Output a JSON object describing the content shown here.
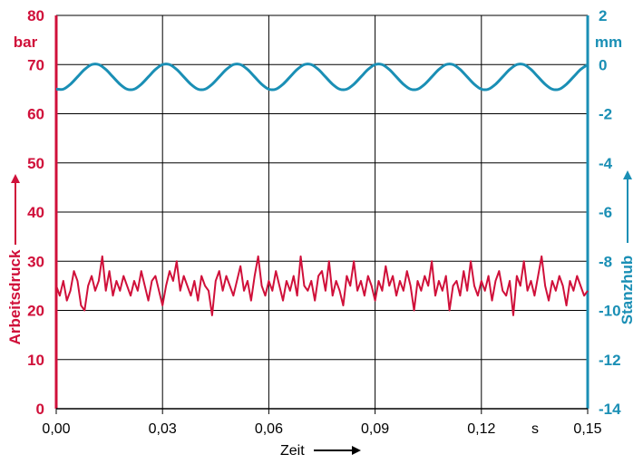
{
  "chart_data": {
    "type": "line",
    "title": "",
    "xlabel": "Zeit",
    "xunit": "s",
    "xlim": [
      0,
      0.15
    ],
    "x_ticks": [
      "0,00",
      "0,03",
      "0,06",
      "0,09",
      "0,12",
      "0,15"
    ],
    "x_tick_values": [
      0,
      0.03,
      0.06,
      0.09,
      0.12,
      0.15
    ],
    "grid": true,
    "y_left": {
      "label": "Arbeitsdruck",
      "unit": "bar",
      "lim": [
        0,
        80
      ],
      "ticks": [
        "0",
        "10",
        "20",
        "30",
        "40",
        "50",
        "60",
        "70",
        "80"
      ],
      "tick_values": [
        0,
        10,
        20,
        30,
        40,
        50,
        60,
        70,
        80
      ],
      "color": "#d0103a"
    },
    "y_right": {
      "label": "Stanzhub",
      "unit": "mm",
      "lim": [
        -14,
        2
      ],
      "ticks": [
        "2",
        "0",
        "-2",
        "-4",
        "-6",
        "-8",
        "-10",
        "-12",
        "-14"
      ],
      "tick_values": [
        2,
        0,
        -2,
        -4,
        -6,
        -8,
        -10,
        -12,
        -14
      ],
      "color": "#1a8fb5"
    },
    "series": [
      {
        "name": "Arbeitsdruck",
        "axis": "left",
        "color": "#d0103a",
        "x": [
          0.0,
          0.001,
          0.002,
          0.003,
          0.004,
          0.005,
          0.006,
          0.007,
          0.008,
          0.009,
          0.01,
          0.011,
          0.012,
          0.013,
          0.014,
          0.015,
          0.016,
          0.017,
          0.018,
          0.019,
          0.02,
          0.021,
          0.022,
          0.023,
          0.024,
          0.025,
          0.026,
          0.027,
          0.028,
          0.029,
          0.03,
          0.031,
          0.032,
          0.033,
          0.034,
          0.035,
          0.036,
          0.037,
          0.038,
          0.039,
          0.04,
          0.041,
          0.042,
          0.043,
          0.044,
          0.045,
          0.046,
          0.047,
          0.048,
          0.049,
          0.05,
          0.051,
          0.052,
          0.053,
          0.054,
          0.055,
          0.056,
          0.057,
          0.058,
          0.059,
          0.06,
          0.061,
          0.062,
          0.063,
          0.064,
          0.065,
          0.066,
          0.067,
          0.068,
          0.069,
          0.07,
          0.071,
          0.072,
          0.073,
          0.074,
          0.075,
          0.076,
          0.077,
          0.078,
          0.079,
          0.08,
          0.081,
          0.082,
          0.083,
          0.084,
          0.085,
          0.086,
          0.087,
          0.088,
          0.089,
          0.09,
          0.091,
          0.092,
          0.093,
          0.094,
          0.095,
          0.096,
          0.097,
          0.098,
          0.099,
          0.1,
          0.101,
          0.102,
          0.103,
          0.104,
          0.105,
          0.106,
          0.107,
          0.108,
          0.109,
          0.11,
          0.111,
          0.112,
          0.113,
          0.114,
          0.115,
          0.116,
          0.117,
          0.118,
          0.119,
          0.12,
          0.121,
          0.122,
          0.123,
          0.124,
          0.125,
          0.126,
          0.127,
          0.128,
          0.129,
          0.13,
          0.131,
          0.132,
          0.133,
          0.134,
          0.135,
          0.136,
          0.137,
          0.138,
          0.139,
          0.14,
          0.141,
          0.142,
          0.143,
          0.144,
          0.145,
          0.146,
          0.147,
          0.148,
          0.149,
          0.15
        ],
        "values": [
          25,
          23,
          26,
          22,
          24,
          28,
          26,
          21,
          20,
          25,
          27,
          24,
          26,
          31,
          24,
          28,
          23,
          26,
          24,
          27,
          25,
          23,
          26,
          24,
          28,
          25,
          22,
          26,
          27,
          24,
          21,
          25,
          28,
          26,
          30,
          24,
          27,
          25,
          23,
          26,
          22,
          27,
          25,
          24,
          19,
          26,
          28,
          24,
          27,
          25,
          23,
          26,
          29,
          24,
          26,
          22,
          27,
          31,
          25,
          23,
          26,
          24,
          28,
          25,
          22,
          26,
          24,
          27,
          23,
          31,
          25,
          24,
          26,
          22,
          27,
          28,
          24,
          30,
          23,
          26,
          24,
          21,
          27,
          25,
          30,
          24,
          26,
          23,
          27,
          25,
          22,
          26,
          24,
          29,
          25,
          27,
          23,
          26,
          24,
          28,
          25,
          20,
          26,
          24,
          27,
          25,
          30,
          23,
          26,
          24,
          27,
          20,
          25,
          26,
          23,
          28,
          24,
          30,
          25,
          23,
          26,
          24,
          27,
          22,
          26,
          28,
          24,
          23,
          26,
          19,
          27,
          25,
          30,
          24,
          26,
          23,
          27,
          31,
          25,
          22,
          26,
          24,
          27,
          25,
          21,
          26,
          24,
          27,
          25,
          23,
          24
        ]
      },
      {
        "name": "Stanzhub",
        "axis": "right",
        "color": "#1a8fb5",
        "x": [
          0.0,
          0.002,
          0.004,
          0.006,
          0.008,
          0.01,
          0.012,
          0.014,
          0.016,
          0.018,
          0.02,
          0.022,
          0.024,
          0.026,
          0.028,
          0.03,
          0.032,
          0.034,
          0.036,
          0.038,
          0.04,
          0.042,
          0.044,
          0.046,
          0.048,
          0.05,
          0.052,
          0.054,
          0.056,
          0.058,
          0.06,
          0.062,
          0.064,
          0.066,
          0.068,
          0.07,
          0.072,
          0.074,
          0.076,
          0.078,
          0.08,
          0.082,
          0.084,
          0.086,
          0.088,
          0.09,
          0.092,
          0.094,
          0.096,
          0.098,
          0.1,
          0.102,
          0.104,
          0.106,
          0.108,
          0.11,
          0.112,
          0.114,
          0.116,
          0.118,
          0.12,
          0.122,
          0.124,
          0.126,
          0.128,
          0.13,
          0.132,
          0.134,
          0.136,
          0.138,
          0.14,
          0.142,
          0.144,
          0.146,
          0.148,
          0.15
        ],
        "values": [
          -1.0,
          -1.0,
          -0.8,
          -0.5,
          -0.2,
          0.0,
          0.0,
          -0.2,
          -0.5,
          -0.8,
          -1.0,
          -1.0,
          -0.8,
          -0.5,
          -0.2,
          0.0,
          0.0,
          -0.2,
          -0.5,
          -0.8,
          -1.0,
          -1.0,
          -0.8,
          -0.5,
          -0.2,
          0.0,
          0.0,
          -0.2,
          -0.5,
          -0.8,
          -1.0,
          -1.0,
          -0.8,
          -0.5,
          -0.2,
          0.0,
          0.0,
          -0.2,
          -0.5,
          -0.8,
          -1.0,
          -1.0,
          -0.8,
          -0.5,
          -0.2,
          0.0,
          0.0,
          -0.2,
          -0.5,
          -0.8,
          -1.0,
          -1.0,
          -0.8,
          -0.5,
          -0.2,
          0.0,
          0.0,
          -0.2,
          -0.5,
          -0.8,
          -1.0,
          -1.0,
          -0.8,
          -0.5,
          -0.2,
          0.0,
          0.0,
          -0.2,
          -0.5,
          -0.8,
          -1.0,
          -1.0,
          -0.8,
          -0.5,
          -0.2,
          0.0
        ]
      }
    ]
  }
}
